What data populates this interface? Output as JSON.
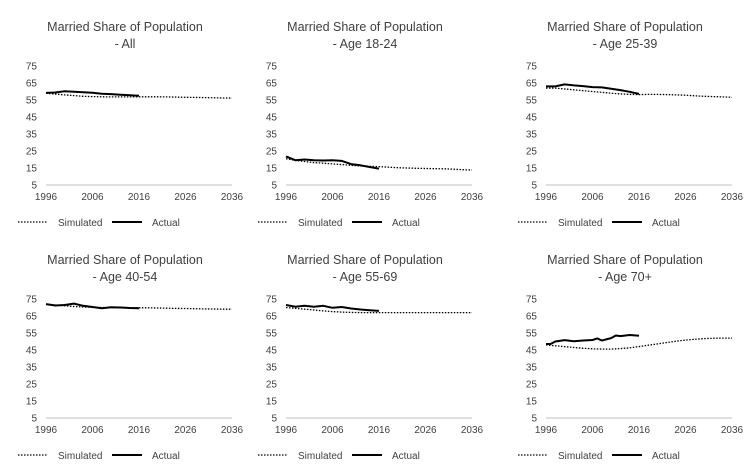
{
  "figure": {
    "name": "Married Share of Population"
  },
  "chart_data": [
    {
      "type": "line",
      "title_line1": "Married Share of Population",
      "title_line2": "- All",
      "x_ticks": [
        "1996",
        "2006",
        "2016",
        "2026",
        "2036"
      ],
      "y_ticks": [
        "5",
        "15",
        "25",
        "35",
        "45",
        "55",
        "65",
        "75"
      ],
      "xlim": [
        1996,
        2036
      ],
      "ylim": [
        5,
        75
      ],
      "legend": [
        "Simulated",
        "Actual"
      ],
      "series": [
        {
          "name": "Simulated",
          "style": "dotted",
          "x": [
            1996,
            1998,
            2000,
            2002,
            2004,
            2006,
            2008,
            2010,
            2012,
            2014,
            2016,
            2018,
            2020,
            2022,
            2024,
            2026,
            2028,
            2030,
            2032,
            2034,
            2036
          ],
          "y": [
            59,
            58.5,
            58,
            57.6,
            57.2,
            57,
            56.9,
            56.8,
            56.8,
            56.8,
            56.9,
            56.9,
            56.9,
            56.8,
            56.7,
            56.6,
            56.5,
            56.4,
            56.3,
            56.2,
            56.1
          ]
        },
        {
          "name": "Actual",
          "style": "solid",
          "x": [
            1996,
            1998,
            2000,
            2002,
            2004,
            2006,
            2008,
            2010,
            2012,
            2014,
            2016
          ],
          "y": [
            59.2,
            59.4,
            60.1,
            59.8,
            59.5,
            59.3,
            58.7,
            58.5,
            58.1,
            57.8,
            57.5
          ]
        }
      ]
    },
    {
      "type": "line",
      "title_line1": "Married Share of Population",
      "title_line2": "- Age 18-24",
      "x_ticks": [
        "1996",
        "2006",
        "2016",
        "2026",
        "2036"
      ],
      "y_ticks": [
        "5",
        "15",
        "25",
        "35",
        "45",
        "55",
        "65",
        "75"
      ],
      "xlim": [
        1996,
        2036
      ],
      "ylim": [
        5,
        75
      ],
      "legend": [
        "Simulated",
        "Actual"
      ],
      "series": [
        {
          "name": "Simulated",
          "style": "dotted",
          "x": [
            1996,
            1998,
            2000,
            2002,
            2004,
            2006,
            2008,
            2010,
            2012,
            2014,
            2016,
            2018,
            2020,
            2022,
            2024,
            2026,
            2028,
            2030,
            2032,
            2034,
            2036
          ],
          "y": [
            20.5,
            19.5,
            18.8,
            18.2,
            17.8,
            17.4,
            17.0,
            16.6,
            16.2,
            16.0,
            15.8,
            15.5,
            15.2,
            15.0,
            14.8,
            14.7,
            14.6,
            14.5,
            14.3,
            14.0,
            13.8
          ]
        },
        {
          "name": "Actual",
          "style": "solid",
          "x": [
            1996,
            1998,
            2000,
            2002,
            2004,
            2006,
            2008,
            2010,
            2012,
            2014,
            2016
          ],
          "y": [
            21.8,
            19.6,
            20.0,
            19.6,
            19.4,
            19.6,
            19.2,
            17.3,
            16.6,
            15.6,
            14.6
          ]
        }
      ]
    },
    {
      "type": "line",
      "title_line1": "Married Share of Population",
      "title_line2": "- Age 25-39",
      "x_ticks": [
        "1996",
        "2006",
        "2016",
        "2026",
        "2036"
      ],
      "y_ticks": [
        "5",
        "15",
        "25",
        "35",
        "45",
        "55",
        "65",
        "75"
      ],
      "xlim": [
        1996,
        2036
      ],
      "ylim": [
        5,
        75
      ],
      "legend": [
        "Simulated",
        "Actual"
      ],
      "series": [
        {
          "name": "Simulated",
          "style": "dotted",
          "x": [
            1996,
            1998,
            2000,
            2002,
            2004,
            2006,
            2008,
            2010,
            2012,
            2014,
            2016,
            2018,
            2020,
            2022,
            2024,
            2026,
            2028,
            2030,
            2032,
            2034,
            2036
          ],
          "y": [
            62,
            62,
            61.5,
            61,
            60.5,
            60,
            59.5,
            59,
            58.6,
            58.3,
            58.2,
            58.3,
            58.3,
            58.2,
            58,
            57.8,
            57.5,
            57.2,
            57,
            56.8,
            56.6
          ]
        },
        {
          "name": "Actual",
          "style": "solid",
          "x": [
            1996,
            1998,
            2000,
            2002,
            2004,
            2006,
            2008,
            2010,
            2012,
            2014,
            2016
          ],
          "y": [
            63,
            63,
            64.2,
            63.6,
            63.2,
            62.6,
            62.4,
            61.6,
            60.8,
            59.8,
            58.6
          ]
        }
      ]
    },
    {
      "type": "line",
      "title_line1": "Married Share of Population",
      "title_line2": "- Age 40-54",
      "x_ticks": [
        "1996",
        "2006",
        "2016",
        "2026",
        "2036"
      ],
      "y_ticks": [
        "5",
        "15",
        "25",
        "35",
        "45",
        "55",
        "65",
        "75"
      ],
      "xlim": [
        1996,
        2036
      ],
      "ylim": [
        5,
        75
      ],
      "legend": [
        "Simulated",
        "Actual"
      ],
      "series": [
        {
          "name": "Simulated",
          "style": "dotted",
          "x": [
            1996,
            1998,
            2000,
            2002,
            2004,
            2006,
            2008,
            2010,
            2012,
            2014,
            2016,
            2018,
            2020,
            2022,
            2024,
            2026,
            2028,
            2030,
            2032,
            2034,
            2036
          ],
          "y": [
            72,
            71.5,
            71,
            70.6,
            70.3,
            70.1,
            70,
            69.9,
            69.8,
            69.8,
            69.8,
            69.8,
            69.7,
            69.6,
            69.5,
            69.4,
            69.3,
            69.2,
            69.1,
            69,
            69
          ]
        },
        {
          "name": "Actual",
          "style": "solid",
          "x": [
            1996,
            1998,
            2000,
            2002,
            2004,
            2006,
            2008,
            2010,
            2012,
            2014,
            2016
          ],
          "y": [
            72,
            71.2,
            71.5,
            72.3,
            71,
            70.3,
            69.6,
            70.2,
            70,
            69.7,
            69.6
          ]
        }
      ]
    },
    {
      "type": "line",
      "title_line1": "Married Share of Population",
      "title_line2": "- Age 55-69",
      "x_ticks": [
        "1996",
        "2006",
        "2016",
        "2026",
        "2036"
      ],
      "y_ticks": [
        "5",
        "15",
        "25",
        "35",
        "45",
        "55",
        "65",
        "75"
      ],
      "xlim": [
        1996,
        2036
      ],
      "ylim": [
        5,
        75
      ],
      "legend": [
        "Simulated",
        "Actual"
      ],
      "series": [
        {
          "name": "Simulated",
          "style": "dotted",
          "x": [
            1996,
            1998,
            2000,
            2002,
            2004,
            2006,
            2008,
            2010,
            2012,
            2014,
            2016,
            2018,
            2020,
            2022,
            2024,
            2026,
            2028,
            2030,
            2032,
            2034,
            2036
          ],
          "y": [
            70,
            69.5,
            69,
            68.5,
            68,
            67.6,
            67.3,
            67.1,
            67,
            67,
            67,
            67,
            67,
            67,
            67,
            67,
            67,
            67,
            67,
            67,
            67
          ]
        },
        {
          "name": "Actual",
          "style": "solid",
          "x": [
            1996,
            1998,
            2000,
            2002,
            2004,
            2006,
            2008,
            2010,
            2012,
            2014,
            2016
          ],
          "y": [
            71.5,
            70.5,
            71,
            70.4,
            71,
            69.8,
            70.3,
            69.4,
            68.8,
            68.4,
            68
          ]
        }
      ]
    },
    {
      "type": "line",
      "title_line1": "Married Share of Population",
      "title_line2": "- Age 70+",
      "x_ticks": [
        "1996",
        "2006",
        "2016",
        "2026",
        "2036"
      ],
      "y_ticks": [
        "5",
        "15",
        "25",
        "35",
        "45",
        "55",
        "65",
        "75"
      ],
      "xlim": [
        1996,
        2036
      ],
      "ylim": [
        5,
        75
      ],
      "legend": [
        "Simulated",
        "Actual"
      ],
      "series": [
        {
          "name": "Simulated",
          "style": "dotted",
          "x": [
            1996,
            1998,
            2000,
            2002,
            2004,
            2006,
            2008,
            2010,
            2012,
            2014,
            2016,
            2018,
            2020,
            2022,
            2024,
            2026,
            2028,
            2030,
            2032,
            2034,
            2036
          ],
          "y": [
            48,
            47.5,
            47,
            46.5,
            46,
            45.7,
            45.5,
            45.5,
            45.8,
            46.3,
            47,
            47.8,
            48.6,
            49.4,
            50.2,
            50.8,
            51.3,
            51.7,
            51.9,
            52,
            52
          ]
        },
        {
          "name": "Actual",
          "style": "solid",
          "x": [
            1996,
            1997,
            1998,
            2000,
            2002,
            2004,
            2006,
            2007,
            2008,
            2010,
            2011,
            2012,
            2014,
            2016
          ],
          "y": [
            48.5,
            48.5,
            50,
            50.8,
            50.2,
            50.6,
            50.9,
            51.8,
            50.6,
            52,
            53.5,
            53.2,
            53.8,
            53.4
          ]
        }
      ]
    }
  ]
}
